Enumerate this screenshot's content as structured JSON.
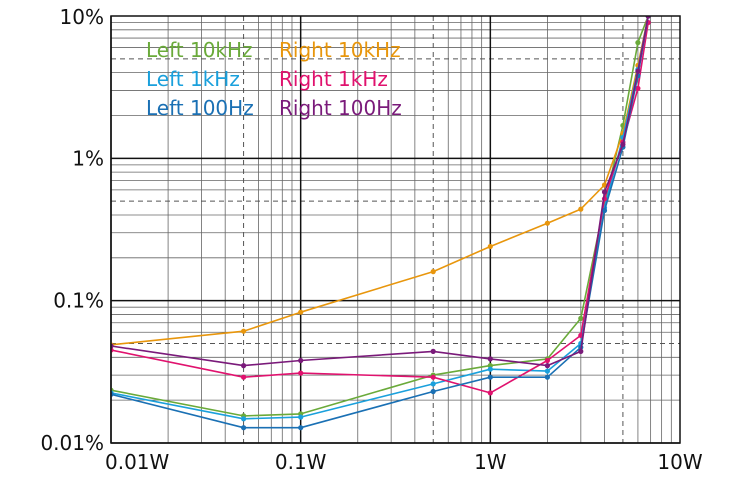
{
  "chart_data": {
    "type": "line",
    "title": "",
    "xlabel": "",
    "ylabel": "",
    "xscale": "log",
    "yscale": "log",
    "xlim": [
      0.01,
      10
    ],
    "ylim": [
      0.01,
      10
    ],
    "x_ticks": [
      {
        "value": 0.01,
        "label": "0.01W"
      },
      {
        "value": 0.1,
        "label": "0.1W"
      },
      {
        "value": 1,
        "label": "1W"
      },
      {
        "value": 10,
        "label": "10W"
      }
    ],
    "y_ticks": [
      {
        "value": 0.01,
        "label": "0.01%"
      },
      {
        "value": 0.1,
        "label": "0.1%"
      },
      {
        "value": 1,
        "label": "1%"
      },
      {
        "value": 10,
        "label": "10%"
      }
    ],
    "grid": true,
    "legend_position": "top-left",
    "series": [
      {
        "name": "Left 10kHz",
        "color": "#6aaa3a",
        "x": [
          0.01,
          0.05,
          0.1,
          0.5,
          1,
          2,
          3,
          4,
          5,
          6,
          6.8
        ],
        "y": [
          0.0235,
          0.0155,
          0.016,
          0.03,
          0.035,
          0.039,
          0.075,
          0.48,
          1.7,
          6.5,
          10
        ]
      },
      {
        "name": "Right 10kHz",
        "color": "#e8960c",
        "x": [
          0.01,
          0.05,
          0.1,
          0.5,
          1,
          2,
          3,
          4,
          5,
          6,
          6.8
        ],
        "y": [
          0.049,
          0.061,
          0.083,
          0.16,
          0.24,
          0.35,
          0.44,
          0.65,
          1.5,
          4.5,
          10
        ]
      },
      {
        "name": "Left 1kHz",
        "color": "#1aa0dc",
        "x": [
          0.01,
          0.05,
          0.1,
          0.5,
          1,
          2,
          3,
          4,
          5,
          6,
          6.8
        ],
        "y": [
          0.0225,
          0.0148,
          0.0152,
          0.026,
          0.033,
          0.032,
          0.05,
          0.45,
          1.4,
          4.2,
          10
        ]
      },
      {
        "name": "Right 1kHz",
        "color": "#e0126e",
        "x": [
          0.01,
          0.05,
          0.1,
          0.5,
          1,
          2,
          3,
          4,
          5,
          6,
          6.8
        ],
        "y": [
          0.045,
          0.029,
          0.031,
          0.029,
          0.0225,
          0.038,
          0.057,
          0.52,
          1.3,
          3.1,
          9
        ]
      },
      {
        "name": "Left 100Hz",
        "color": "#1a70b4",
        "x": [
          0.01,
          0.05,
          0.1,
          0.5,
          1,
          2,
          3,
          4,
          5,
          6,
          6.8
        ],
        "y": [
          0.022,
          0.0128,
          0.0128,
          0.023,
          0.029,
          0.029,
          0.047,
          0.43,
          1.2,
          3.8,
          10
        ]
      },
      {
        "name": "Right 100Hz",
        "color": "#7a1a7a",
        "x": [
          0.01,
          0.05,
          0.1,
          0.5,
          1,
          2,
          3,
          4,
          5,
          6,
          6.8
        ],
        "y": [
          0.048,
          0.035,
          0.038,
          0.044,
          0.039,
          0.035,
          0.044,
          0.58,
          1.25,
          4.1,
          10
        ]
      }
    ]
  }
}
